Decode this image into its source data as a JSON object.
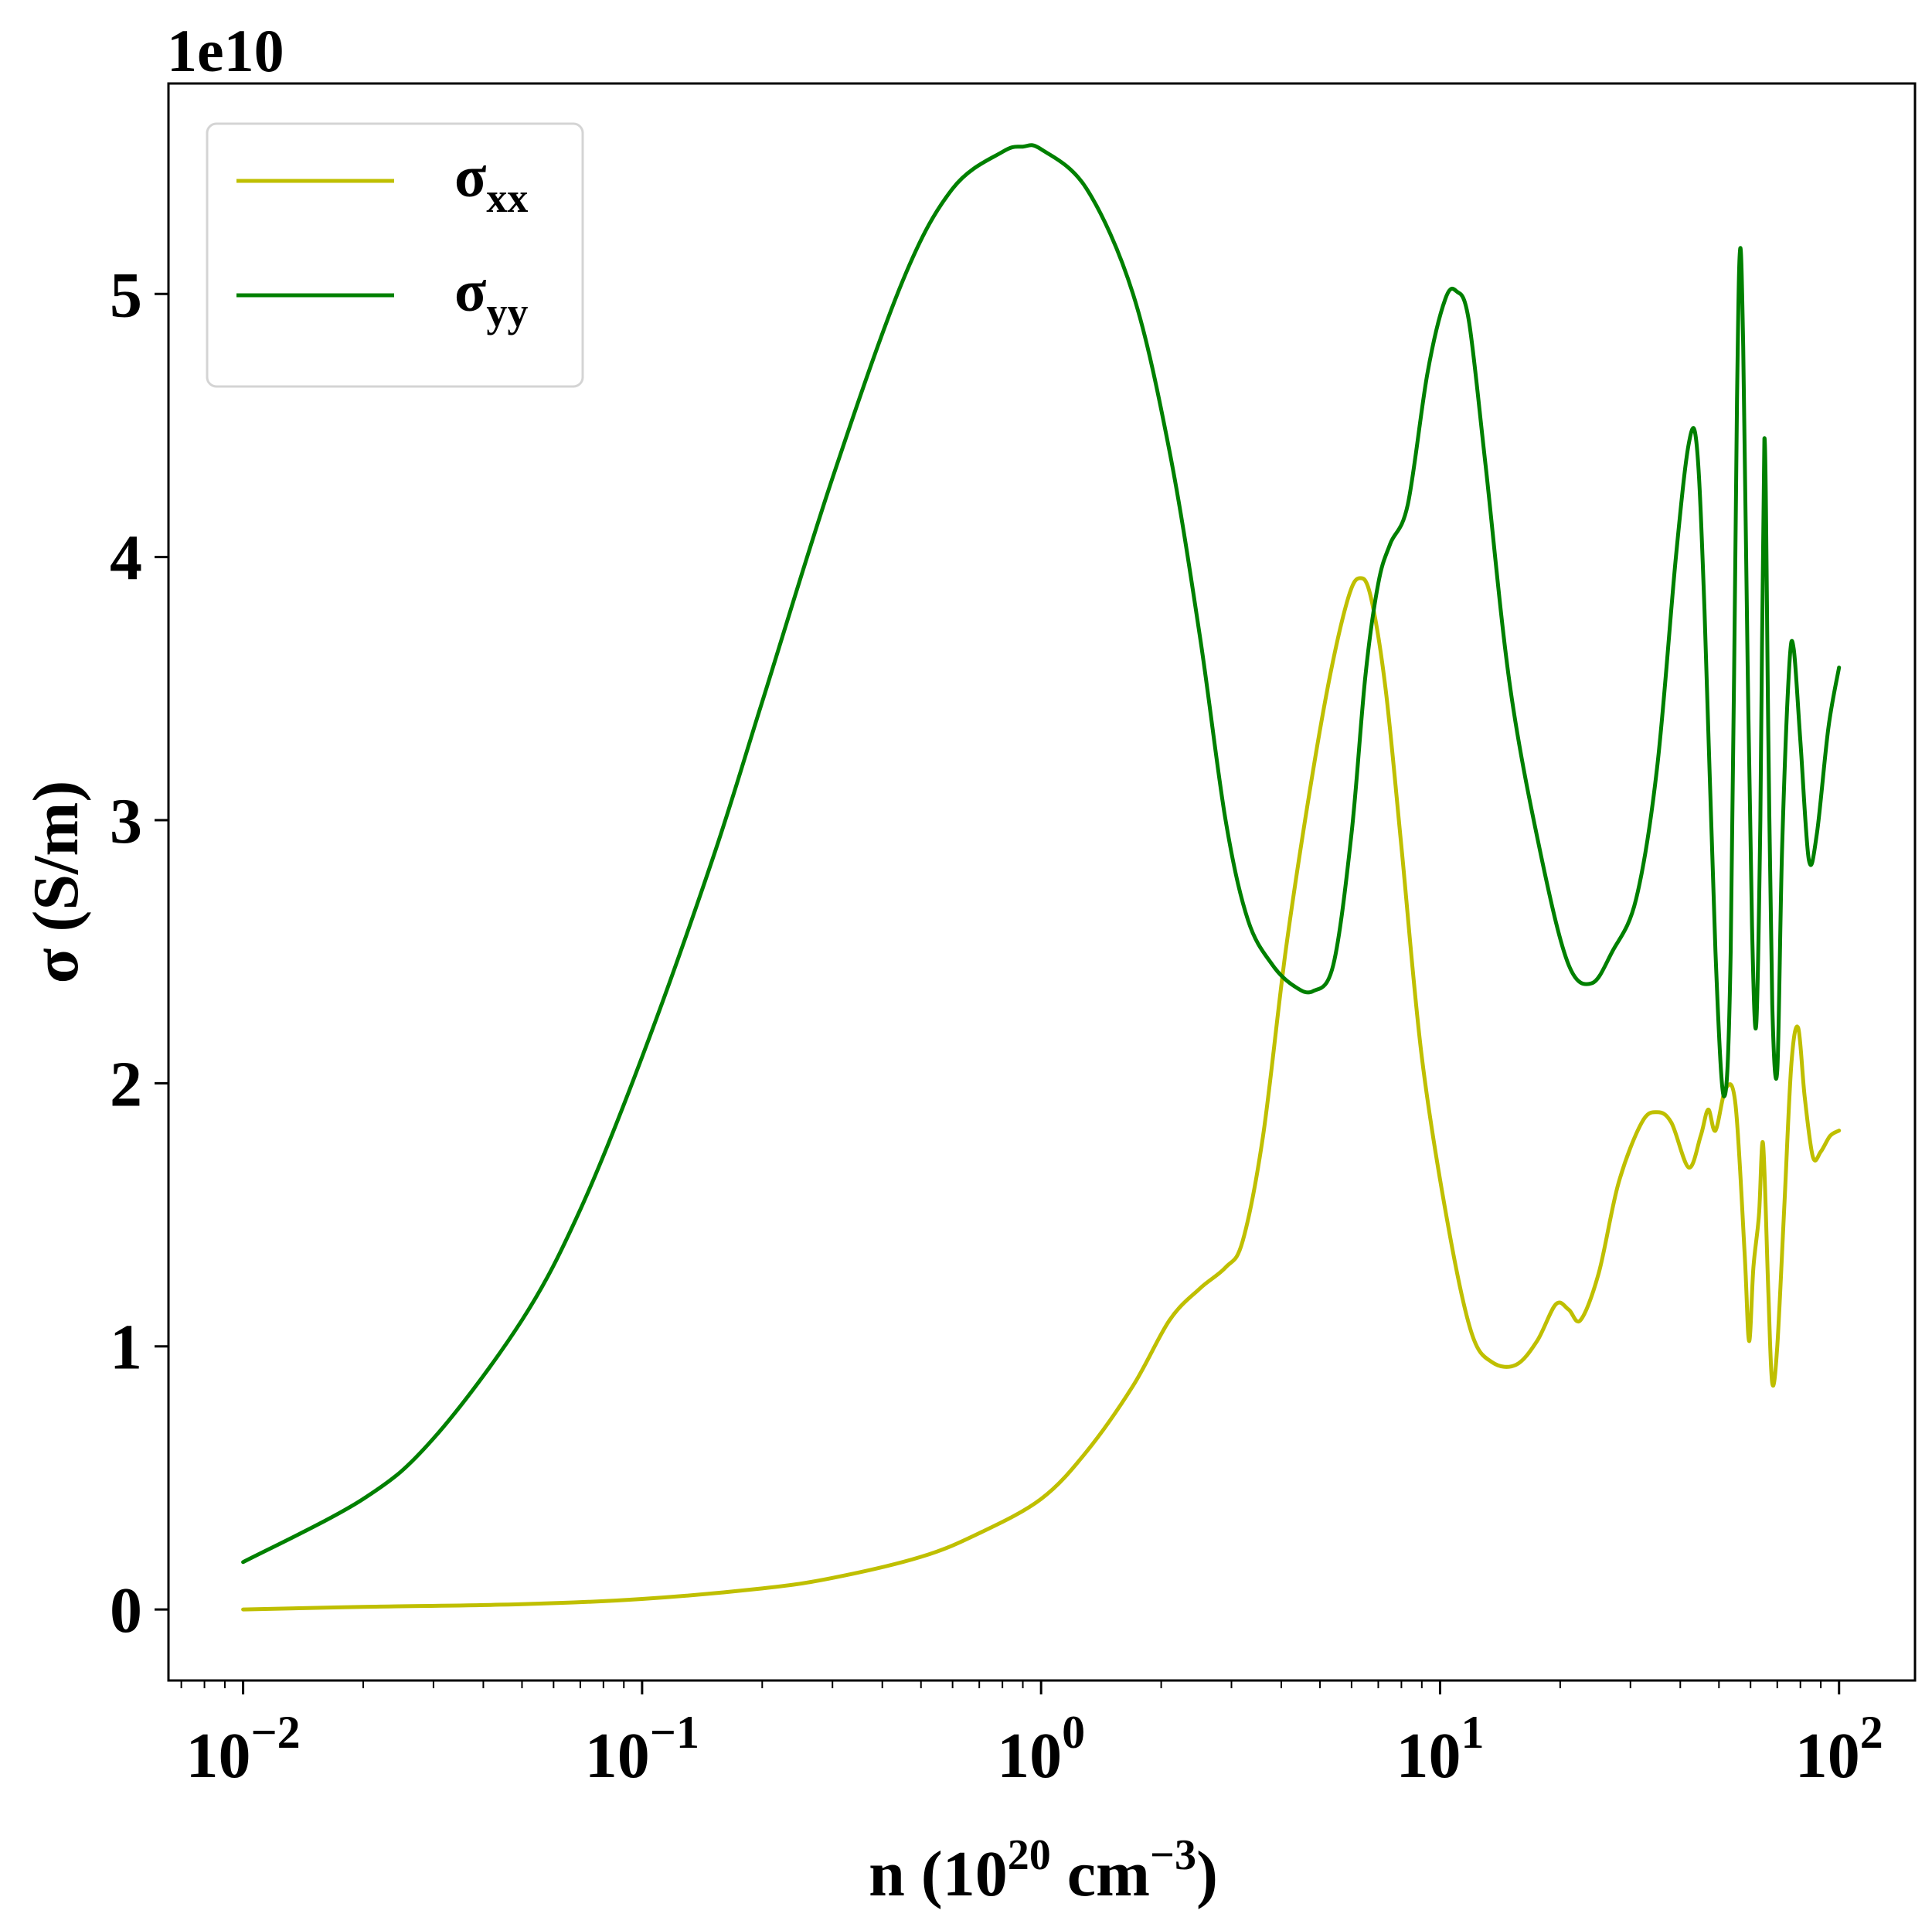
{
  "chart_data": {
    "type": "line",
    "offset_label": "1e10",
    "xlabel": {
      "main": "n (10",
      "sup1": "20",
      "mid": " cm",
      "sup2": "−3",
      "tail": ")"
    },
    "ylabel": "σ (S/m)",
    "xscale": "log",
    "xlim": [
      0.0065,
      155
    ],
    "ylim": [
      -0.27,
      5.8
    ],
    "x_ticks": [
      {
        "value": 0.01,
        "base": "10",
        "exp": "−2"
      },
      {
        "value": 0.1,
        "base": "10",
        "exp": "−1"
      },
      {
        "value": 1,
        "base": "10",
        "exp": "0"
      },
      {
        "value": 10,
        "base": "10",
        "exp": "1"
      },
      {
        "value": 100,
        "base": "10",
        "exp": "2"
      }
    ],
    "y_ticks": [
      {
        "value": 0,
        "label": "0"
      },
      {
        "value": 1,
        "label": "1"
      },
      {
        "value": 2,
        "label": "2"
      },
      {
        "value": 3,
        "label": "3"
      },
      {
        "value": 4,
        "label": "4"
      },
      {
        "value": 5,
        "label": "5"
      }
    ],
    "grid": false,
    "legend_position": "top-left",
    "series": [
      {
        "name": "σxx",
        "legend_main": "σ",
        "legend_sub": "xx",
        "color": "#bfbf00",
        "points": [
          [
            0.01,
            0.0
          ],
          [
            0.02,
            0.01
          ],
          [
            0.05,
            0.02
          ],
          [
            0.1,
            0.04
          ],
          [
            0.2,
            0.08
          ],
          [
            0.3,
            0.12
          ],
          [
            0.5,
            0.2
          ],
          [
            0.7,
            0.29
          ],
          [
            1.0,
            0.42
          ],
          [
            1.3,
            0.6
          ],
          [
            1.7,
            0.85
          ],
          [
            2.1,
            1.1
          ],
          [
            2.5,
            1.22
          ],
          [
            2.9,
            1.3
          ],
          [
            3.2,
            1.4
          ],
          [
            3.6,
            1.8
          ],
          [
            4.1,
            2.5
          ],
          [
            4.7,
            3.1
          ],
          [
            5.3,
            3.55
          ],
          [
            5.9,
            3.85
          ],
          [
            6.3,
            3.92
          ],
          [
            6.7,
            3.85
          ],
          [
            7.3,
            3.5
          ],
          [
            8.0,
            2.9
          ],
          [
            9.0,
            2.1
          ],
          [
            10.5,
            1.45
          ],
          [
            12.0,
            1.05
          ],
          [
            13.5,
            0.94
          ],
          [
            15.5,
            0.93
          ],
          [
            17.5,
            1.02
          ],
          [
            19.5,
            1.16
          ],
          [
            21.0,
            1.14
          ],
          [
            22.5,
            1.1
          ],
          [
            25.0,
            1.28
          ],
          [
            28.0,
            1.62
          ],
          [
            32.0,
            1.85
          ],
          [
            35.0,
            1.89
          ],
          [
            38.0,
            1.85
          ],
          [
            42.0,
            1.68
          ],
          [
            45.0,
            1.8
          ],
          [
            47.0,
            1.9
          ],
          [
            49.0,
            1.82
          ],
          [
            52.0,
            1.98
          ],
          [
            55.0,
            1.92
          ],
          [
            58.0,
            1.35
          ],
          [
            59.5,
            1.02
          ],
          [
            61.0,
            1.3
          ],
          [
            63.0,
            1.5
          ],
          [
            64.5,
            1.77
          ],
          [
            66.5,
            1.2
          ],
          [
            68.0,
            0.86
          ],
          [
            70.0,
            1.0
          ],
          [
            73.0,
            1.55
          ],
          [
            76.0,
            2.08
          ],
          [
            79.0,
            2.21
          ],
          [
            82.0,
            1.95
          ],
          [
            86.0,
            1.72
          ],
          [
            90.0,
            1.74
          ],
          [
            95.0,
            1.8
          ],
          [
            100.0,
            1.82
          ]
        ]
      },
      {
        "name": "σyy",
        "legend_main": "σ",
        "legend_sub": "yy",
        "color": "#008000",
        "points": [
          [
            0.01,
            0.18
          ],
          [
            0.02,
            0.42
          ],
          [
            0.03,
            0.65
          ],
          [
            0.05,
            1.1
          ],
          [
            0.07,
            1.52
          ],
          [
            0.1,
            2.1
          ],
          [
            0.15,
            2.85
          ],
          [
            0.2,
            3.45
          ],
          [
            0.3,
            4.3
          ],
          [
            0.45,
            5.05
          ],
          [
            0.6,
            5.4
          ],
          [
            0.8,
            5.54
          ],
          [
            0.9,
            5.56
          ],
          [
            1.0,
            5.55
          ],
          [
            1.3,
            5.4
          ],
          [
            1.7,
            5.0
          ],
          [
            2.1,
            4.4
          ],
          [
            2.5,
            3.7
          ],
          [
            2.9,
            3.0
          ],
          [
            3.3,
            2.62
          ],
          [
            3.8,
            2.45
          ],
          [
            4.3,
            2.37
          ],
          [
            4.8,
            2.35
          ],
          [
            5.4,
            2.45
          ],
          [
            6.0,
            2.95
          ],
          [
            6.5,
            3.55
          ],
          [
            7.0,
            3.9
          ],
          [
            7.5,
            4.05
          ],
          [
            8.3,
            4.2
          ],
          [
            9.3,
            4.7
          ],
          [
            10.3,
            4.98
          ],
          [
            11.0,
            5.01
          ],
          [
            11.8,
            4.9
          ],
          [
            13.0,
            4.35
          ],
          [
            15.0,
            3.5
          ],
          [
            18.0,
            2.85
          ],
          [
            21.0,
            2.45
          ],
          [
            24.0,
            2.38
          ],
          [
            27.0,
            2.5
          ],
          [
            31.0,
            2.7
          ],
          [
            35.0,
            3.2
          ],
          [
            39.0,
            4.0
          ],
          [
            42.0,
            4.43
          ],
          [
            44.0,
            4.42
          ],
          [
            46.0,
            3.8
          ],
          [
            49.0,
            2.5
          ],
          [
            51.5,
            1.95
          ],
          [
            53.5,
            2.5
          ],
          [
            55.5,
            4.6
          ],
          [
            56.5,
            5.17
          ],
          [
            57.5,
            4.8
          ],
          [
            59.0,
            3.6
          ],
          [
            60.5,
            2.6
          ],
          [
            62.0,
            2.22
          ],
          [
            63.5,
            3.0
          ],
          [
            65.0,
            4.45
          ],
          [
            66.5,
            3.3
          ],
          [
            68.0,
            2.3
          ],
          [
            70.0,
            2.05
          ],
          [
            72.0,
            2.9
          ],
          [
            75.0,
            3.58
          ],
          [
            77.0,
            3.65
          ],
          [
            80.0,
            3.3
          ],
          [
            84.0,
            2.85
          ],
          [
            88.0,
            2.95
          ],
          [
            94.0,
            3.35
          ],
          [
            100.0,
            3.58
          ]
        ]
      }
    ]
  }
}
